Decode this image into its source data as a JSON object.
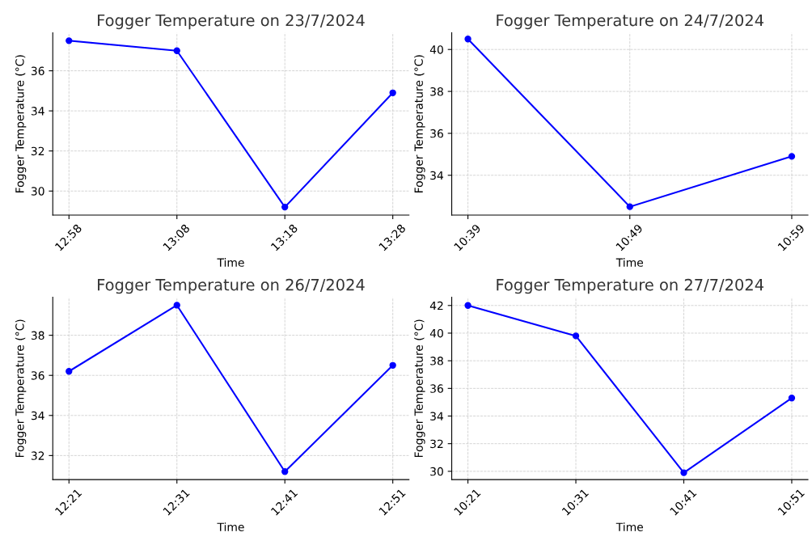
{
  "chart_data": [
    {
      "type": "line",
      "title": "Fogger Temperature on 23/7/2024",
      "xlabel": "Time",
      "ylabel": "Fogger Temperature (°C)",
      "categories": [
        "12:58",
        "13:08",
        "13:18",
        "13:28"
      ],
      "series": [
        {
          "color": "#0000ff",
          "values": [
            37.5,
            37.0,
            29.2,
            34.9
          ]
        }
      ],
      "ylim": [
        28.8,
        37.9
      ],
      "yticks": [
        30,
        32,
        34,
        36
      ],
      "grid": true,
      "marker": "circle",
      "line_style": "solid"
    },
    {
      "type": "line",
      "title": "Fogger Temperature on 24/7/2024",
      "xlabel": "Time",
      "ylabel": "Fogger Temperature (°C)",
      "categories": [
        "10:39",
        "10:49",
        "10:59"
      ],
      "series": [
        {
          "color": "#0000ff",
          "values": [
            40.5,
            32.5,
            34.9
          ]
        }
      ],
      "ylim": [
        32.1,
        40.8
      ],
      "yticks": [
        34,
        36,
        38,
        40
      ],
      "grid": true,
      "marker": "circle",
      "line_style": "solid"
    },
    {
      "type": "line",
      "title": "Fogger Temperature on 26/7/2024",
      "xlabel": "Time",
      "ylabel": "Fogger Temperature (°C)",
      "categories": [
        "12:21",
        "12:31",
        "12:41",
        "12:51"
      ],
      "series": [
        {
          "color": "#0000ff",
          "values": [
            36.2,
            39.5,
            31.2,
            36.5
          ]
        }
      ],
      "ylim": [
        30.8,
        39.9
      ],
      "yticks": [
        32,
        34,
        36,
        38
      ],
      "grid": true,
      "marker": "circle",
      "line_style": "solid"
    },
    {
      "type": "line",
      "title": "Fogger Temperature on 27/7/2024",
      "xlabel": "Time",
      "ylabel": "Fogger Temperature (°C)",
      "categories": [
        "10:21",
        "10:31",
        "10:41",
        "10:51"
      ],
      "series": [
        {
          "color": "#0000ff",
          "values": [
            42.0,
            39.8,
            29.9,
            35.3
          ]
        }
      ],
      "ylim": [
        29.4,
        42.6
      ],
      "yticks": [
        30,
        32,
        34,
        36,
        38,
        40,
        42
      ],
      "grid": true,
      "marker": "circle",
      "line_style": "solid"
    }
  ]
}
